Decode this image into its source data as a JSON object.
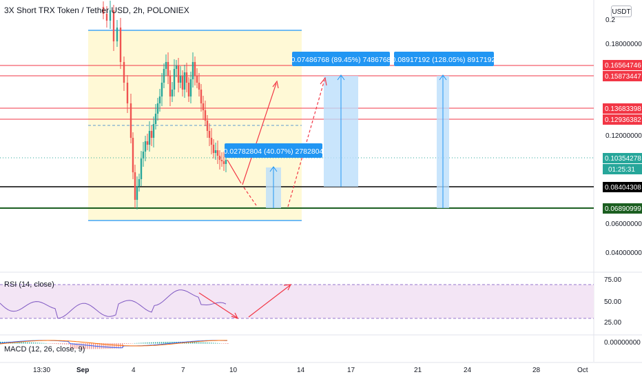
{
  "header": {
    "title": "3X Short TRX Token / Tether USD, 2h, POLONIEX"
  },
  "currency_button": "USDT",
  "rsi": {
    "label": "RSI (14, close)"
  },
  "macd": {
    "label": "MACD (12, 26, close, 9)"
  },
  "price_axis": {
    "ticks": [
      "0.18000000",
      "0.12000000",
      "0.06000000",
      "0.04000000"
    ],
    "partial_top_tick": "0.2"
  },
  "rsi_axis": {
    "ticks": [
      "75.00",
      "50.00",
      "25.00"
    ]
  },
  "macd_axis": {
    "ticks": [
      "0.00000000"
    ]
  },
  "time_axis": {
    "ticks": [
      "13:30",
      "Sep",
      "4",
      "7",
      "10",
      "14",
      "17",
      "21",
      "24",
      "28",
      "Oct"
    ]
  },
  "price_labels": [
    {
      "text": "0.16564746",
      "color": "#f23645"
    },
    {
      "text": "0.15873447",
      "color": "#f23645"
    },
    {
      "text": "0.13683398",
      "color": "#f23645"
    },
    {
      "text": "0.12936382",
      "color": "#f23645"
    },
    {
      "text": "0.10354278",
      "color": "#26a69a"
    },
    {
      "text": "01:25:31",
      "color": "#26a69a"
    },
    {
      "text": "0.08404308",
      "color": "#000000"
    },
    {
      "text": "0.06890999",
      "color": "#1b5e20"
    }
  ],
  "callouts": [
    {
      "text": "0.07486768 (89.45%) 7486768"
    },
    {
      "text": "0.08917192 (128.05%) 8917192"
    },
    {
      "text": "0.02782804 (40.07%) 2782804"
    }
  ],
  "colors": {
    "up": "#26a69a",
    "down": "#ef5350",
    "resistance": "#f23645",
    "support": "#000000",
    "support_green": "#1b5e20",
    "box_fill": "#fff9d6",
    "box_border": "#42a5f5",
    "target_fill": "#bbdefb",
    "callout_bg": "#2196f3",
    "rsi_band": "#f3e5f5",
    "rsi_line": "#7e57c2",
    "arrow": "#f23645"
  }
}
